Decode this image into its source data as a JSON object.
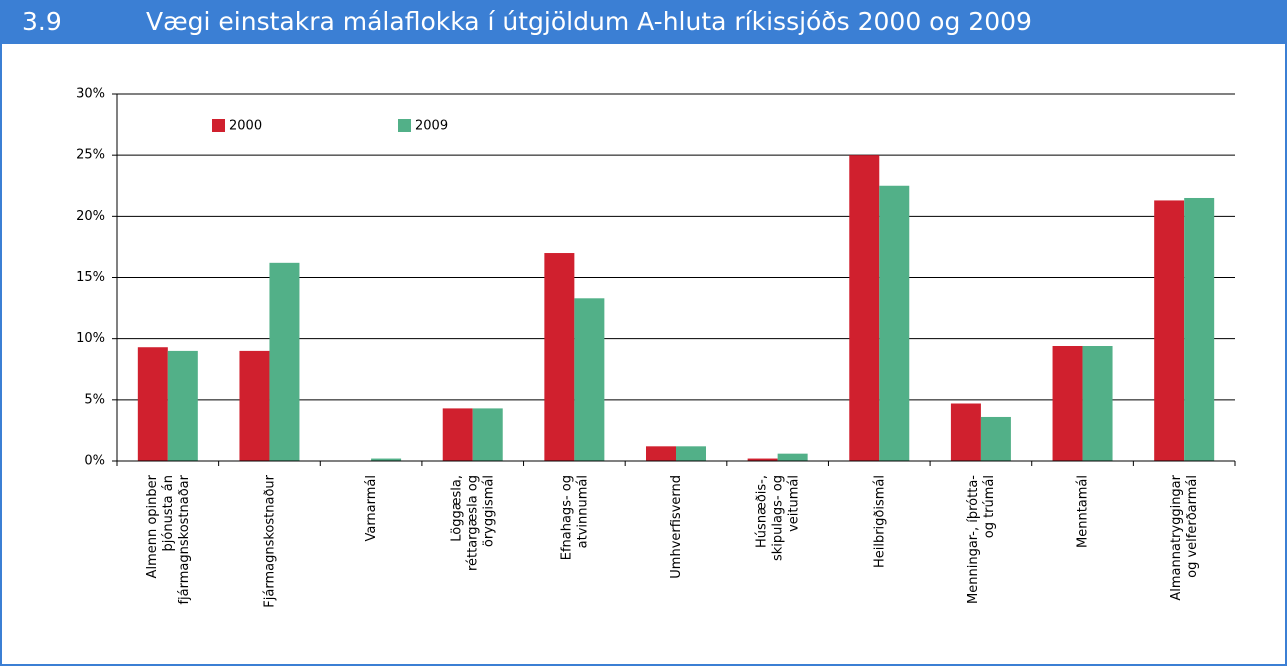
{
  "chart_data": {
    "type": "bar",
    "number": "3.9",
    "title": "Vægi einstakra málaflokka í útgjöldum A-hluta ríkissjóðs 2000 og 2009",
    "categories": [
      "Almenn opinber\nþjónusta án\nfjármagnskostnaðar",
      "Fjármagnskostnaður",
      "Varnarmál",
      "Löggæsla,\nréttargæsla og\nöryggismál",
      "Efnahags- og\natvinnumál",
      "Umhverfisvernd",
      "Húsnæðis-,\nskipulags- og\nveitumál",
      "Heilbrigðismál",
      "Menningar-, íþrótta-\nog trúmál",
      "Menntamál",
      "Almannatryggingar\nog velferðarmál"
    ],
    "series": [
      {
        "name": "2000",
        "color": "#d0202e",
        "values": [
          9.3,
          9.0,
          0,
          4.3,
          17.0,
          1.2,
          0.2,
          25.0,
          4.7,
          9.4,
          21.3
        ]
      },
      {
        "name": "2009",
        "color": "#52b088",
        "values": [
          9.0,
          16.2,
          0.2,
          4.3,
          13.3,
          1.2,
          0.6,
          22.5,
          3.6,
          9.4,
          21.5
        ]
      }
    ],
    "ylim": [
      0,
      30
    ],
    "yticks": [
      {
        "value": 0,
        "label": "0%"
      },
      {
        "value": 5,
        "label": "5%"
      },
      {
        "value": 10,
        "label": "10%"
      },
      {
        "value": 15,
        "label": "15%"
      },
      {
        "value": 20,
        "label": "20%"
      },
      {
        "value": 25,
        "label": "25%"
      },
      {
        "value": 30,
        "label": "30%"
      }
    ],
    "grid": true,
    "legend": "top-left"
  }
}
